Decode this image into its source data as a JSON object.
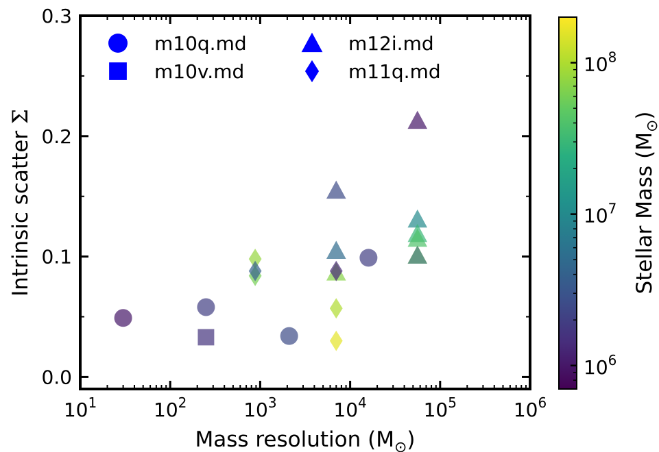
{
  "chart_data": {
    "type": "scatter",
    "xlabel_prefix": "Mass resolution (M",
    "xlabel_sub": "⊙",
    "xlabel_suffix": ")",
    "ylabel_prefix": "Intrinsic scatter ",
    "ylabel_symbol": "Σ",
    "x_scale": "log",
    "xlim": [
      10,
      1000000
    ],
    "ylim": [
      -0.01,
      0.3
    ],
    "x_ticks": [
      {
        "value": 10,
        "base": "10",
        "exp": "1"
      },
      {
        "value": 100,
        "base": "10",
        "exp": "2"
      },
      {
        "value": 1000,
        "base": "10",
        "exp": "3"
      },
      {
        "value": 10000,
        "base": "10",
        "exp": "4"
      },
      {
        "value": 100000,
        "base": "10",
        "exp": "5"
      },
      {
        "value": 1000000,
        "base": "10",
        "exp": "6"
      }
    ],
    "y_ticks": [
      {
        "value": 0.0,
        "label": "0.0"
      },
      {
        "value": 0.1,
        "label": "0.1"
      },
      {
        "value": 0.2,
        "label": "0.2"
      },
      {
        "value": 0.3,
        "label": "0.3"
      }
    ],
    "grid": false,
    "legend_position": "top-left",
    "colorbar": {
      "label_prefix": "Stellar Mass (M",
      "label_sub": "⊙",
      "label_suffix": ")",
      "scale": "log",
      "range": [
        700000,
        200000000
      ],
      "colormap": "viridis",
      "ticks": [
        {
          "value": 1000000,
          "base": "10",
          "exp": "6"
        },
        {
          "value": 10000000,
          "base": "10",
          "exp": "7"
        },
        {
          "value": 100000000,
          "base": "10",
          "exp": "8"
        }
      ]
    },
    "series": [
      {
        "name": "m10q.md",
        "marker": "circle",
        "points": [
          {
            "x": 30,
            "y": 0.049,
            "stellar_mass": 1000000
          },
          {
            "x": 250,
            "y": 0.058,
            "stellar_mass": 2000000
          },
          {
            "x": 2100,
            "y": 0.034,
            "stellar_mass": 2500000
          },
          {
            "x": 16000,
            "y": 0.099,
            "stellar_mass": 2000000
          }
        ]
      },
      {
        "name": "m10v.md",
        "marker": "square",
        "points": [
          {
            "x": 250,
            "y": 0.033,
            "stellar_mass": 1600000
          }
        ]
      },
      {
        "name": "m12i.md",
        "marker": "triangle",
        "points": [
          {
            "x": 7000,
            "y": 0.155,
            "stellar_mass": 2500000
          },
          {
            "x": 7000,
            "y": 0.105,
            "stellar_mass": 5000000
          },
          {
            "x": 7000,
            "y": 0.087,
            "stellar_mass": 70000000
          },
          {
            "x": 56000,
            "y": 0.213,
            "stellar_mass": 1000000
          },
          {
            "x": 56000,
            "y": 0.131,
            "stellar_mass": 10000000
          },
          {
            "x": 56000,
            "y": 0.119,
            "stellar_mass": 30000000
          },
          {
            "x": 56000,
            "y": 0.115,
            "stellar_mass": 40000000
          },
          {
            "x": 56000,
            "y": 0.101,
            "stellar_mass": 150000000
          },
          {
            "x": 56000,
            "y": 0.101,
            "stellar_mass": 6000000
          }
        ]
      },
      {
        "name": "m11q.md",
        "marker": "diamond",
        "points": [
          {
            "x": 880,
            "y": 0.098,
            "stellar_mass": 80000000
          },
          {
            "x": 880,
            "y": 0.084,
            "stellar_mass": 60000000
          },
          {
            "x": 880,
            "y": 0.088,
            "stellar_mass": 4000000
          },
          {
            "x": 7000,
            "y": 0.088,
            "stellar_mass": 1300000
          },
          {
            "x": 7000,
            "y": 0.057,
            "stellar_mass": 100000000
          },
          {
            "x": 7000,
            "y": 0.03,
            "stellar_mass": 160000000
          }
        ]
      }
    ]
  }
}
